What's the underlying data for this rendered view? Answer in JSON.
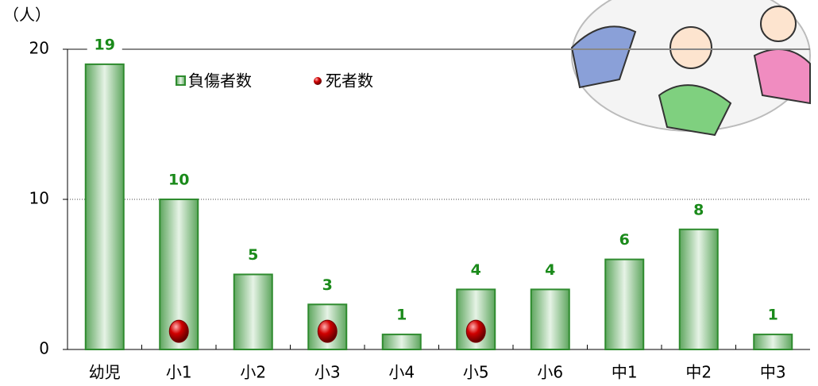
{
  "chart_data": {
    "type": "bar",
    "y_label": "（人）",
    "categories": [
      "幼児",
      "小1",
      "小2",
      "小3",
      "小4",
      "小5",
      "小6",
      "中1",
      "中2",
      "中3"
    ],
    "series": [
      {
        "name": "負傷者数",
        "color": "#2e8b2e",
        "values": [
          19,
          10,
          5,
          3,
          1,
          4,
          4,
          6,
          8,
          1
        ]
      },
      {
        "name": "死者数",
        "color": "#cc0000",
        "values": [
          null,
          1,
          null,
          1,
          null,
          1,
          null,
          null,
          null,
          null
        ]
      }
    ],
    "ylim": [
      0,
      20
    ],
    "yticks": [
      0,
      10,
      20
    ],
    "grid": true
  }
}
